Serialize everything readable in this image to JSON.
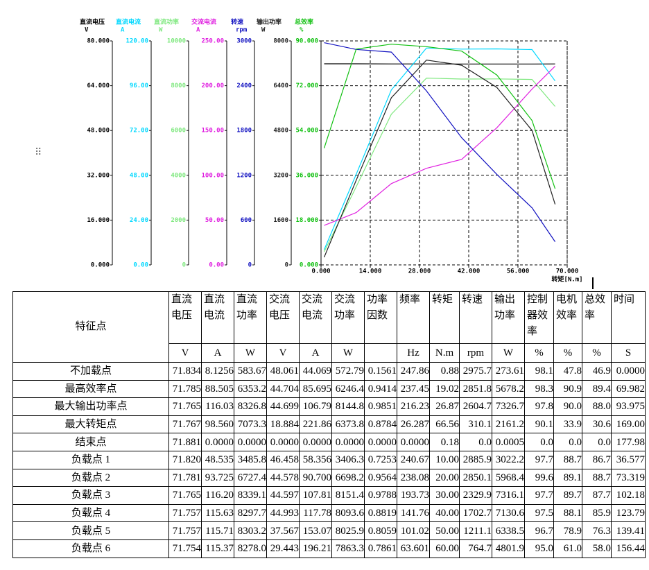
{
  "chart_data": {
    "type": "line",
    "x_label": "转矩[N.m]",
    "x": [
      0.88,
      10,
      20,
      30,
      40,
      50,
      60,
      66.56
    ],
    "xlim": [
      0,
      70
    ],
    "xticks": [
      {
        "value": 0,
        "label": "0.000"
      },
      {
        "value": 14,
        "label": "14.000"
      },
      {
        "value": 28,
        "label": "28.000"
      },
      {
        "value": 42,
        "label": "42.000"
      },
      {
        "value": 56,
        "label": "56.000"
      },
      {
        "value": 70,
        "label": "70.000"
      }
    ],
    "grid": true,
    "series": [
      {
        "name": "直流电压",
        "unit": "V",
        "color": "#000000",
        "ylim": [
          0,
          80
        ],
        "yticks": [
          {
            "value": 0,
            "label": "0.000"
          },
          {
            "value": 16,
            "label": "16.000"
          },
          {
            "value": 32,
            "label": "32.000"
          },
          {
            "value": 48,
            "label": "48.000"
          },
          {
            "value": 64,
            "label": "64.000"
          },
          {
            "value": 80,
            "label": "80.000"
          }
        ],
        "values": [
          71.834,
          71.82,
          71.781,
          71.765,
          71.757,
          71.757,
          71.754,
          71.767
        ]
      },
      {
        "name": "直流电流",
        "unit": "A",
        "color": "#00d8ff",
        "ylim": [
          0,
          120
        ],
        "yticks": [
          {
            "value": 0,
            "label": "0.00"
          },
          {
            "value": 24,
            "label": "24.00"
          },
          {
            "value": 48,
            "label": "48.00"
          },
          {
            "value": 72,
            "label": "72.00"
          },
          {
            "value": 96,
            "label": "96.00"
          },
          {
            "value": 120,
            "label": "120.00"
          }
        ],
        "values": [
          8.1256,
          48.535,
          93.725,
          116.2,
          115.63,
          115.71,
          115.37,
          98.56
        ]
      },
      {
        "name": "直流功率",
        "unit": "W",
        "color": "#7fe87f",
        "ylim": [
          0,
          10000
        ],
        "yticks": [
          0,
          2000,
          4000,
          6000,
          8000,
          10000
        ],
        "values": [
          583.67,
          3485.8,
          6727.4,
          8339.1,
          8297.7,
          8303.2,
          8278.0,
          7073.3
        ]
      },
      {
        "name": "交流电流",
        "unit": "A",
        "color": "#e020e0",
        "ylim": [
          0,
          250
        ],
        "yticks": [
          {
            "value": 0,
            "label": "0.00"
          },
          {
            "value": 50,
            "label": "50.00"
          },
          {
            "value": 100,
            "label": "100.00"
          },
          {
            "value": 150,
            "label": "150.00"
          },
          {
            "value": 200,
            "label": "200.00"
          },
          {
            "value": 250,
            "label": "250.00"
          }
        ],
        "values": [
          44.069,
          58.356,
          90.7,
          107.81,
          117.78,
          153.07,
          196.21,
          221.86
        ]
      },
      {
        "name": "转速",
        "unit": "rpm",
        "color": "#1010c0",
        "ylim": [
          0,
          3000
        ],
        "yticks": [
          0,
          600,
          1200,
          1800,
          2400,
          3000
        ],
        "values": [
          2975.7,
          2885.9,
          2850.1,
          2329.9,
          1702.7,
          1211.1,
          764.7,
          310.1
        ]
      },
      {
        "name": "输出功率",
        "unit": "W",
        "color": "#202020",
        "ylim": [
          0,
          8000
        ],
        "yticks": [
          0,
          1600,
          3200,
          4800,
          6400,
          8000
        ],
        "values": [
          273.61,
          3022.2,
          5968.4,
          7316.1,
          7130.6,
          6338.5,
          4801.9,
          2161.2
        ]
      },
      {
        "name": "总效率",
        "unit": "%",
        "color": "#10c010",
        "ylim": [
          0,
          90
        ],
        "yticks": [
          {
            "value": 0,
            "label": "0.000"
          },
          {
            "value": 18,
            "label": "18.000"
          },
          {
            "value": 36,
            "label": "36.000"
          },
          {
            "value": 54,
            "label": "54.000"
          },
          {
            "value": 72,
            "label": "72.000"
          },
          {
            "value": 90,
            "label": "90.000"
          }
        ],
        "values": [
          46.9,
          86.7,
          88.7,
          87.7,
          85.9,
          76.3,
          58.0,
          30.6
        ]
      }
    ]
  },
  "table": {
    "header": [
      "特征点",
      "直流电压",
      "直流电流",
      "直流功率",
      "交流电压",
      "交流电流",
      "交流功率",
      "功率因数",
      "频率",
      "转矩",
      "转速",
      "输出功率",
      "控制器效率",
      "电机效率",
      "总效率",
      "时间"
    ],
    "units": [
      "V",
      "A",
      "W",
      "V",
      "A",
      "W",
      null,
      "Hz",
      "N.m",
      "rpm",
      "W",
      "%",
      "%",
      "%",
      "S"
    ],
    "rows": [
      [
        "不加载点",
        "71.834",
        "8.1256",
        "583.67",
        "48.061",
        "44.069",
        "572.79",
        "0.1561",
        "247.86",
        "0.88",
        "2975.7",
        "273.61",
        "98.1",
        "47.8",
        "46.9",
        "0.0000"
      ],
      [
        "最高效率点",
        "71.785",
        "88.505",
        "6353.2",
        "44.704",
        "85.695",
        "6246.4",
        "0.9414",
        "237.45",
        "19.02",
        "2851.8",
        "5678.2",
        "98.3",
        "90.9",
        "89.4",
        "69.982"
      ],
      [
        "最大输出功率点",
        "71.765",
        "116.03",
        "8326.8",
        "44.699",
        "106.79",
        "8144.8",
        "0.9851",
        "216.23",
        "26.87",
        "2604.7",
        "7326.7",
        "97.8",
        "90.0",
        "88.0",
        "93.975"
      ],
      [
        "最大转矩点",
        "71.767",
        "98.560",
        "7073.3",
        "18.884",
        "221.86",
        "6373.8",
        "0.8784",
        "26.287",
        "66.56",
        "310.1",
        "2161.2",
        "90.1",
        "33.9",
        "30.6",
        "169.00"
      ],
      [
        "结束点",
        "71.881",
        "0.0000",
        "0.0000",
        "0.0000",
        "0.0000",
        "0.0000",
        "0.0000",
        "0.0000",
        "0.18",
        "0.0",
        "0.0005",
        "0.0",
        "0.0",
        "0.0",
        "177.98"
      ],
      [
        "负载点 1",
        "71.820",
        "48.535",
        "3485.8",
        "46.458",
        "58.356",
        "3406.3",
        "0.7253",
        "240.67",
        "10.00",
        "2885.9",
        "3022.2",
        "97.7",
        "88.7",
        "86.7",
        "36.577"
      ],
      [
        "负载点 2",
        "71.781",
        "93.725",
        "6727.4",
        "44.578",
        "90.700",
        "6698.2",
        "0.9564",
        "238.08",
        "20.00",
        "2850.1",
        "5968.4",
        "99.6",
        "89.1",
        "88.7",
        "73.319"
      ],
      [
        "负载点 3",
        "71.765",
        "116.20",
        "8339.1",
        "44.597",
        "107.81",
        "8151.4",
        "0.9788",
        "193.73",
        "30.00",
        "2329.9",
        "7316.1",
        "97.7",
        "89.7",
        "87.7",
        "102.18"
      ],
      [
        "负载点 4",
        "71.757",
        "115.63",
        "8297.7",
        "44.993",
        "117.78",
        "8093.6",
        "0.8819",
        "141.76",
        "40.00",
        "1702.7",
        "7130.6",
        "97.5",
        "88.1",
        "85.9",
        "123.79"
      ],
      [
        "负载点 5",
        "71.757",
        "115.71",
        "8303.2",
        "37.567",
        "153.07",
        "8025.9",
        "0.8059",
        "101.02",
        "50.00",
        "1211.1",
        "6338.5",
        "96.7",
        "78.9",
        "76.3",
        "139.41"
      ],
      [
        "负载点 6",
        "71.754",
        "115.37",
        "8278.0",
        "29.443",
        "196.21",
        "7863.3",
        "0.7861",
        "63.601",
        "60.00",
        "764.7",
        "4801.9",
        "95.0",
        "61.0",
        "58.0",
        "156.44"
      ]
    ]
  }
}
